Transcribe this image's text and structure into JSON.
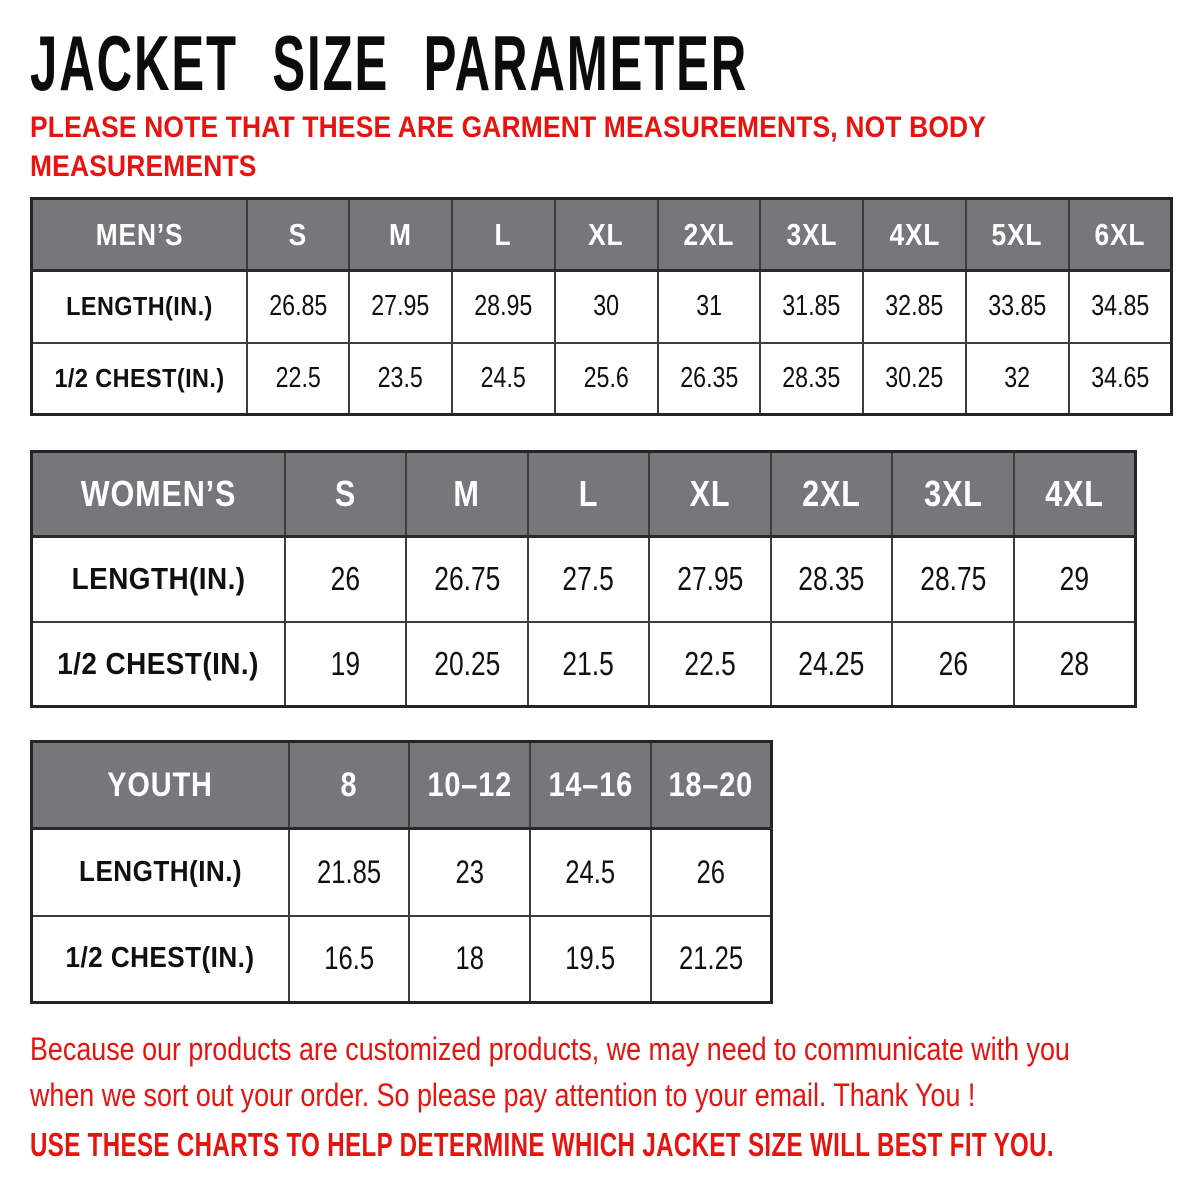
{
  "page": {
    "title": "JACKET SIZE PARAMETER",
    "note_lines": [
      "PLEASE NOTE THAT THESE ARE GARMENT MEASUREMENTS, NOT BODY",
      "MEASUREMENTS"
    ],
    "footer_lines": [
      "Because our products are customized products, we may need to communicate with you",
      "when we sort out your order. So please pay attention to your email. Thank You !"
    ],
    "footer_emphasis": "USE THESE CHARTS TO HELP DETERMINE WHICH JACKET SIZE WILL BEST FIT YOU."
  },
  "colors": {
    "accent_red": "#e8120e",
    "header_gray": "#76777a",
    "header_text": "#ffffff",
    "border_outer": "#242424",
    "border_inner": "#3d3d3d",
    "text_black": "#101010"
  },
  "tables": [
    {
      "id": "mens",
      "header": [
        "MEN’S",
        "S",
        "M",
        "L",
        "XL",
        "2XL",
        "3XL",
        "4XL",
        "5XL",
        "6XL"
      ],
      "rows": [
        {
          "label": "LENGTH(IN.)",
          "values": [
            "26.85",
            "27.95",
            "28.95",
            "30",
            "31",
            "31.85",
            "32.85",
            "33.85",
            "34.85"
          ]
        },
        {
          "label": "1/2 CHEST(IN.)",
          "values": [
            "22.5",
            "23.5",
            "24.5",
            "25.6",
            "26.35",
            "28.35",
            "30.25",
            "32",
            "34.65"
          ]
        }
      ]
    },
    {
      "id": "womens",
      "header": [
        "WOMEN’S",
        "S",
        "M",
        "L",
        "XL",
        "2XL",
        "3XL",
        "4XL"
      ],
      "rows": [
        {
          "label": "LENGTH(IN.)",
          "values": [
            "26",
            "26.75",
            "27.5",
            "27.95",
            "28.35",
            "28.75",
            "29"
          ]
        },
        {
          "label": "1/2 CHEST(IN.)",
          "values": [
            "19",
            "20.25",
            "21.5",
            "22.5",
            "24.25",
            "26",
            "28"
          ]
        }
      ]
    },
    {
      "id": "youth",
      "header": [
        "YOUTH",
        "8",
        "10–12",
        "14–16",
        "18–20"
      ],
      "rows": [
        {
          "label": "LENGTH(IN.)",
          "values": [
            "21.85",
            "23",
            "24.5",
            "26"
          ]
        },
        {
          "label": "1/2 CHEST(IN.)",
          "values": [
            "16.5",
            "18",
            "19.5",
            "21.25"
          ]
        }
      ]
    }
  ]
}
